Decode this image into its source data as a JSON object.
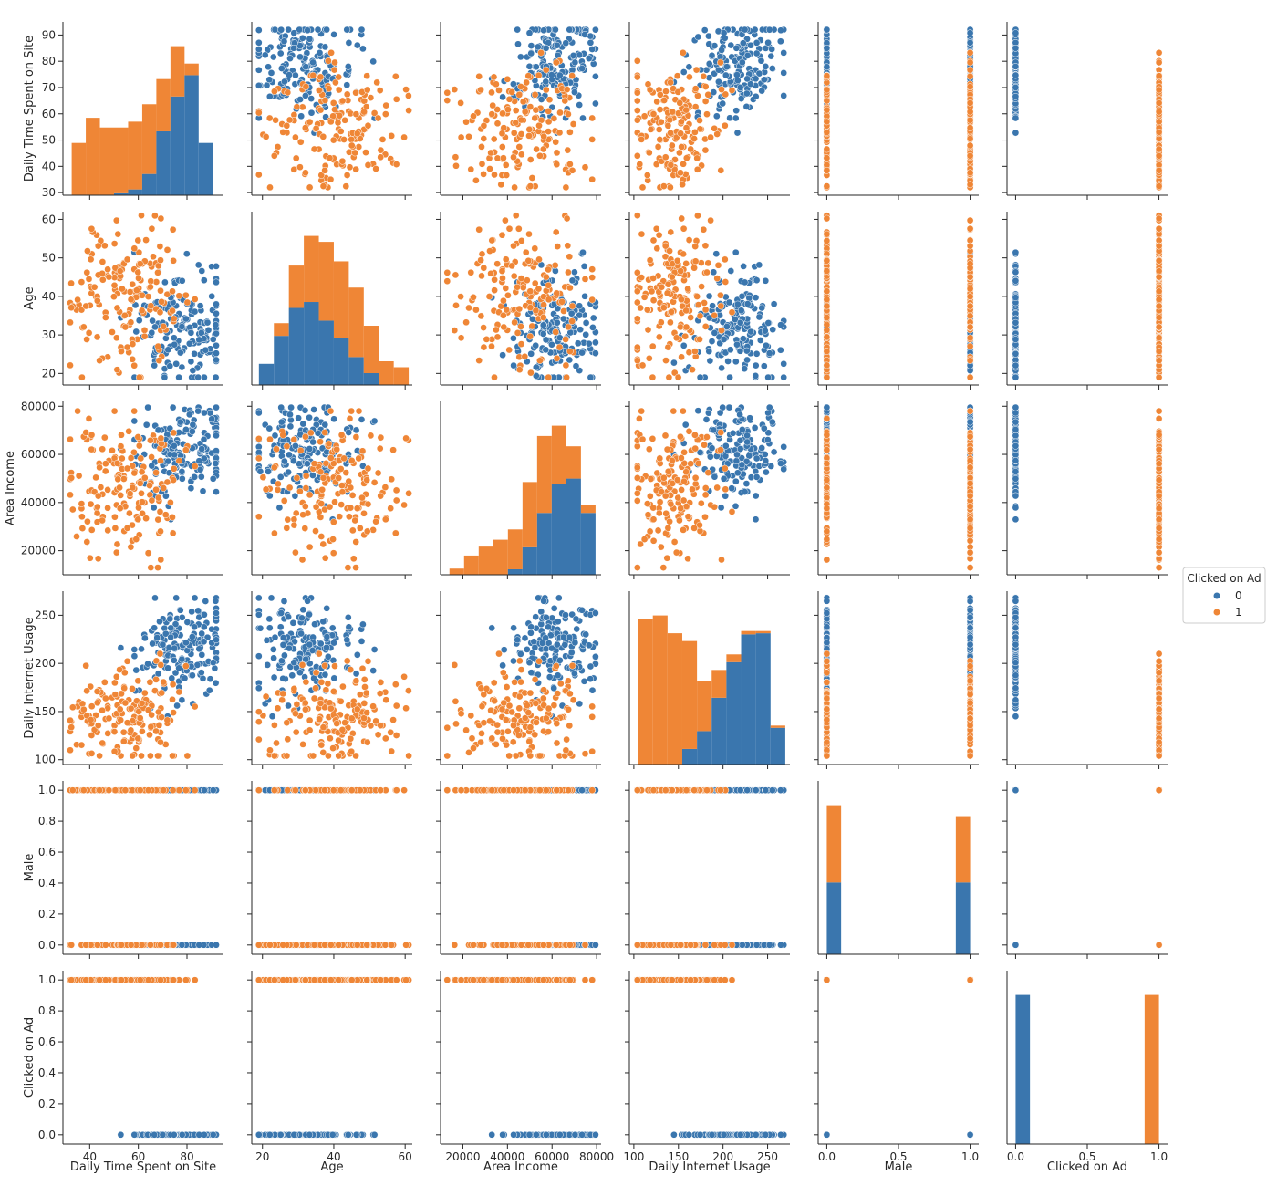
{
  "colors": {
    "class_0": "#3a76ae",
    "class_1": "#ef8636",
    "axis": "#262626",
    "point_edge": "#ffffff"
  },
  "chart_data": {
    "type": "scatter",
    "kind": "pairplot",
    "hue": "Clicked on Ad",
    "hue_levels": [
      "0",
      "1"
    ],
    "legend": {
      "title": "Clicked on Ad",
      "entries": [
        "0",
        "1"
      ],
      "placement": "right"
    },
    "variables": [
      {
        "name": "Daily Time Spent on Site",
        "lim": [
          29,
          95
        ],
        "ticks": [
          30,
          40,
          50,
          60,
          70,
          80,
          90
        ],
        "xticks": [
          40,
          60,
          80
        ],
        "ranges": {
          "0": [
            48,
            92
          ],
          "1": [
            32,
            91
          ]
        },
        "centers": {
          "0": [
            79,
            10
          ],
          "1": [
            55,
            13
          ]
        }
      },
      {
        "name": "Age",
        "lim": [
          17,
          62
        ],
        "ticks": [
          20,
          30,
          40,
          50,
          60
        ],
        "xticks": [
          20,
          40,
          60
        ],
        "ranges": {
          "0": [
            19,
            53
          ],
          "1": [
            19,
            61
          ]
        },
        "centers": {
          "0": [
            32,
            7
          ],
          "1": [
            40,
            9
          ]
        }
      },
      {
        "name": "Area Income",
        "lim": [
          10000,
          82000
        ],
        "ticks": [
          20000,
          40000,
          60000,
          80000
        ],
        "xticks": [
          20000,
          40000,
          60000,
          80000
        ],
        "ranges": {
          "0": [
            33000,
            79500
          ],
          "1": [
            13000,
            78000
          ]
        },
        "centers": {
          "0": [
            61000,
            11000
          ],
          "1": [
            48000,
            14000
          ]
        }
      },
      {
        "name": "Daily Internet Usage",
        "lim": [
          95,
          275
        ],
        "ticks": [
          100,
          150,
          200,
          250
        ],
        "xticks": [
          100,
          150,
          200,
          250
        ],
        "ranges": {
          "0": [
            145,
            268
          ],
          "1": [
            104,
            270
          ]
        },
        "centers": {
          "0": [
            214,
            25
          ],
          "1": [
            146,
            30
          ]
        }
      },
      {
        "name": "Male",
        "lim": [
          -0.06,
          1.06
        ],
        "ticks": [
          0.0,
          0.2,
          0.4,
          0.6,
          0.8,
          1.0
        ],
        "xticks": [
          0.0,
          0.5,
          1.0
        ],
        "binary": true,
        "tick_format": "f1"
      },
      {
        "name": "Clicked on Ad",
        "lim": [
          -0.06,
          1.06
        ],
        "ticks": [
          0.0,
          0.2,
          0.4,
          0.6,
          0.8,
          1.0
        ],
        "xticks": [
          0.0,
          0.5,
          1.0
        ],
        "binary": true,
        "tick_format": "f1"
      }
    ],
    "histograms": [
      {
        "variable": "Daily Time Spent on Site",
        "bin_edges": [
          32.6,
          38.4,
          44.2,
          50.0,
          55.8,
          61.6,
          67.4,
          73.2,
          79.0,
          84.8,
          90.6
        ],
        "series": [
          {
            "name": "0",
            "values": [
              0,
              0,
              0,
              1,
              3,
              11,
              33,
              51,
              62,
              27
            ]
          },
          {
            "name": "1",
            "values": [
              27,
              40,
              35,
              34,
              35,
              36,
              27,
              26,
              6,
              0
            ]
          }
        ]
      },
      {
        "variable": "Age",
        "bin_edges": [
          19,
          23.2,
          27.4,
          31.6,
          35.8,
          40.0,
          44.2,
          48.4,
          52.6,
          56.8,
          61.0
        ],
        "series": [
          {
            "name": "0",
            "values": [
              25,
              58,
              91,
              98,
              76,
              55,
              33,
              14,
              0,
              0
            ]
          },
          {
            "name": "1",
            "values": [
              0,
              15,
              50,
              78,
              93,
              91,
              82,
              56,
              28,
              21
            ]
          }
        ]
      },
      {
        "variable": "Area Income",
        "bin_edges": [
          13996,
          20547,
          27098,
          33649,
          40200,
          46751,
          53302,
          59853,
          66404,
          72955,
          79506
        ],
        "series": [
          {
            "name": "0",
            "values": [
              0,
              0,
              0,
              0,
              8,
              40,
              90,
              132,
              140,
              90
            ]
          },
          {
            "name": "1",
            "values": [
              9,
              28,
              41,
              51,
              58,
              95,
              112,
              85,
              47,
              12
            ]
          }
        ]
      },
      {
        "variable": "Daily Internet Usage",
        "bin_edges": [
          104.8,
          121.3,
          137.8,
          154.3,
          170.8,
          187.3,
          203.8,
          220.3,
          236.8,
          253.3,
          269.8
        ],
        "series": [
          {
            "name": "0",
            "values": [
              0,
              0,
              0,
              14,
              30,
              60,
              92,
              117,
              118,
              33
            ]
          },
          {
            "name": "1",
            "values": [
              131,
              134,
              118,
              97,
              45,
              25,
              7,
              3,
              2,
              2
            ]
          }
        ]
      },
      {
        "variable": "Male",
        "bin_edges": [
          0.0,
          0.1,
          0.9,
          1.0
        ],
        "series": [
          {
            "name": "0",
            "values": [
              250,
              0,
              250
            ]
          },
          {
            "name": "1",
            "values": [
              269,
              0,
              231
            ]
          }
        ]
      },
      {
        "variable": "Clicked on Ad",
        "bin_edges": [
          0.0,
          0.1,
          0.9,
          1.0
        ],
        "series": [
          {
            "name": "0",
            "values": [
              500,
              0,
              0
            ]
          },
          {
            "name": "1",
            "values": [
              0,
              0,
              500
            ]
          }
        ]
      }
    ]
  }
}
